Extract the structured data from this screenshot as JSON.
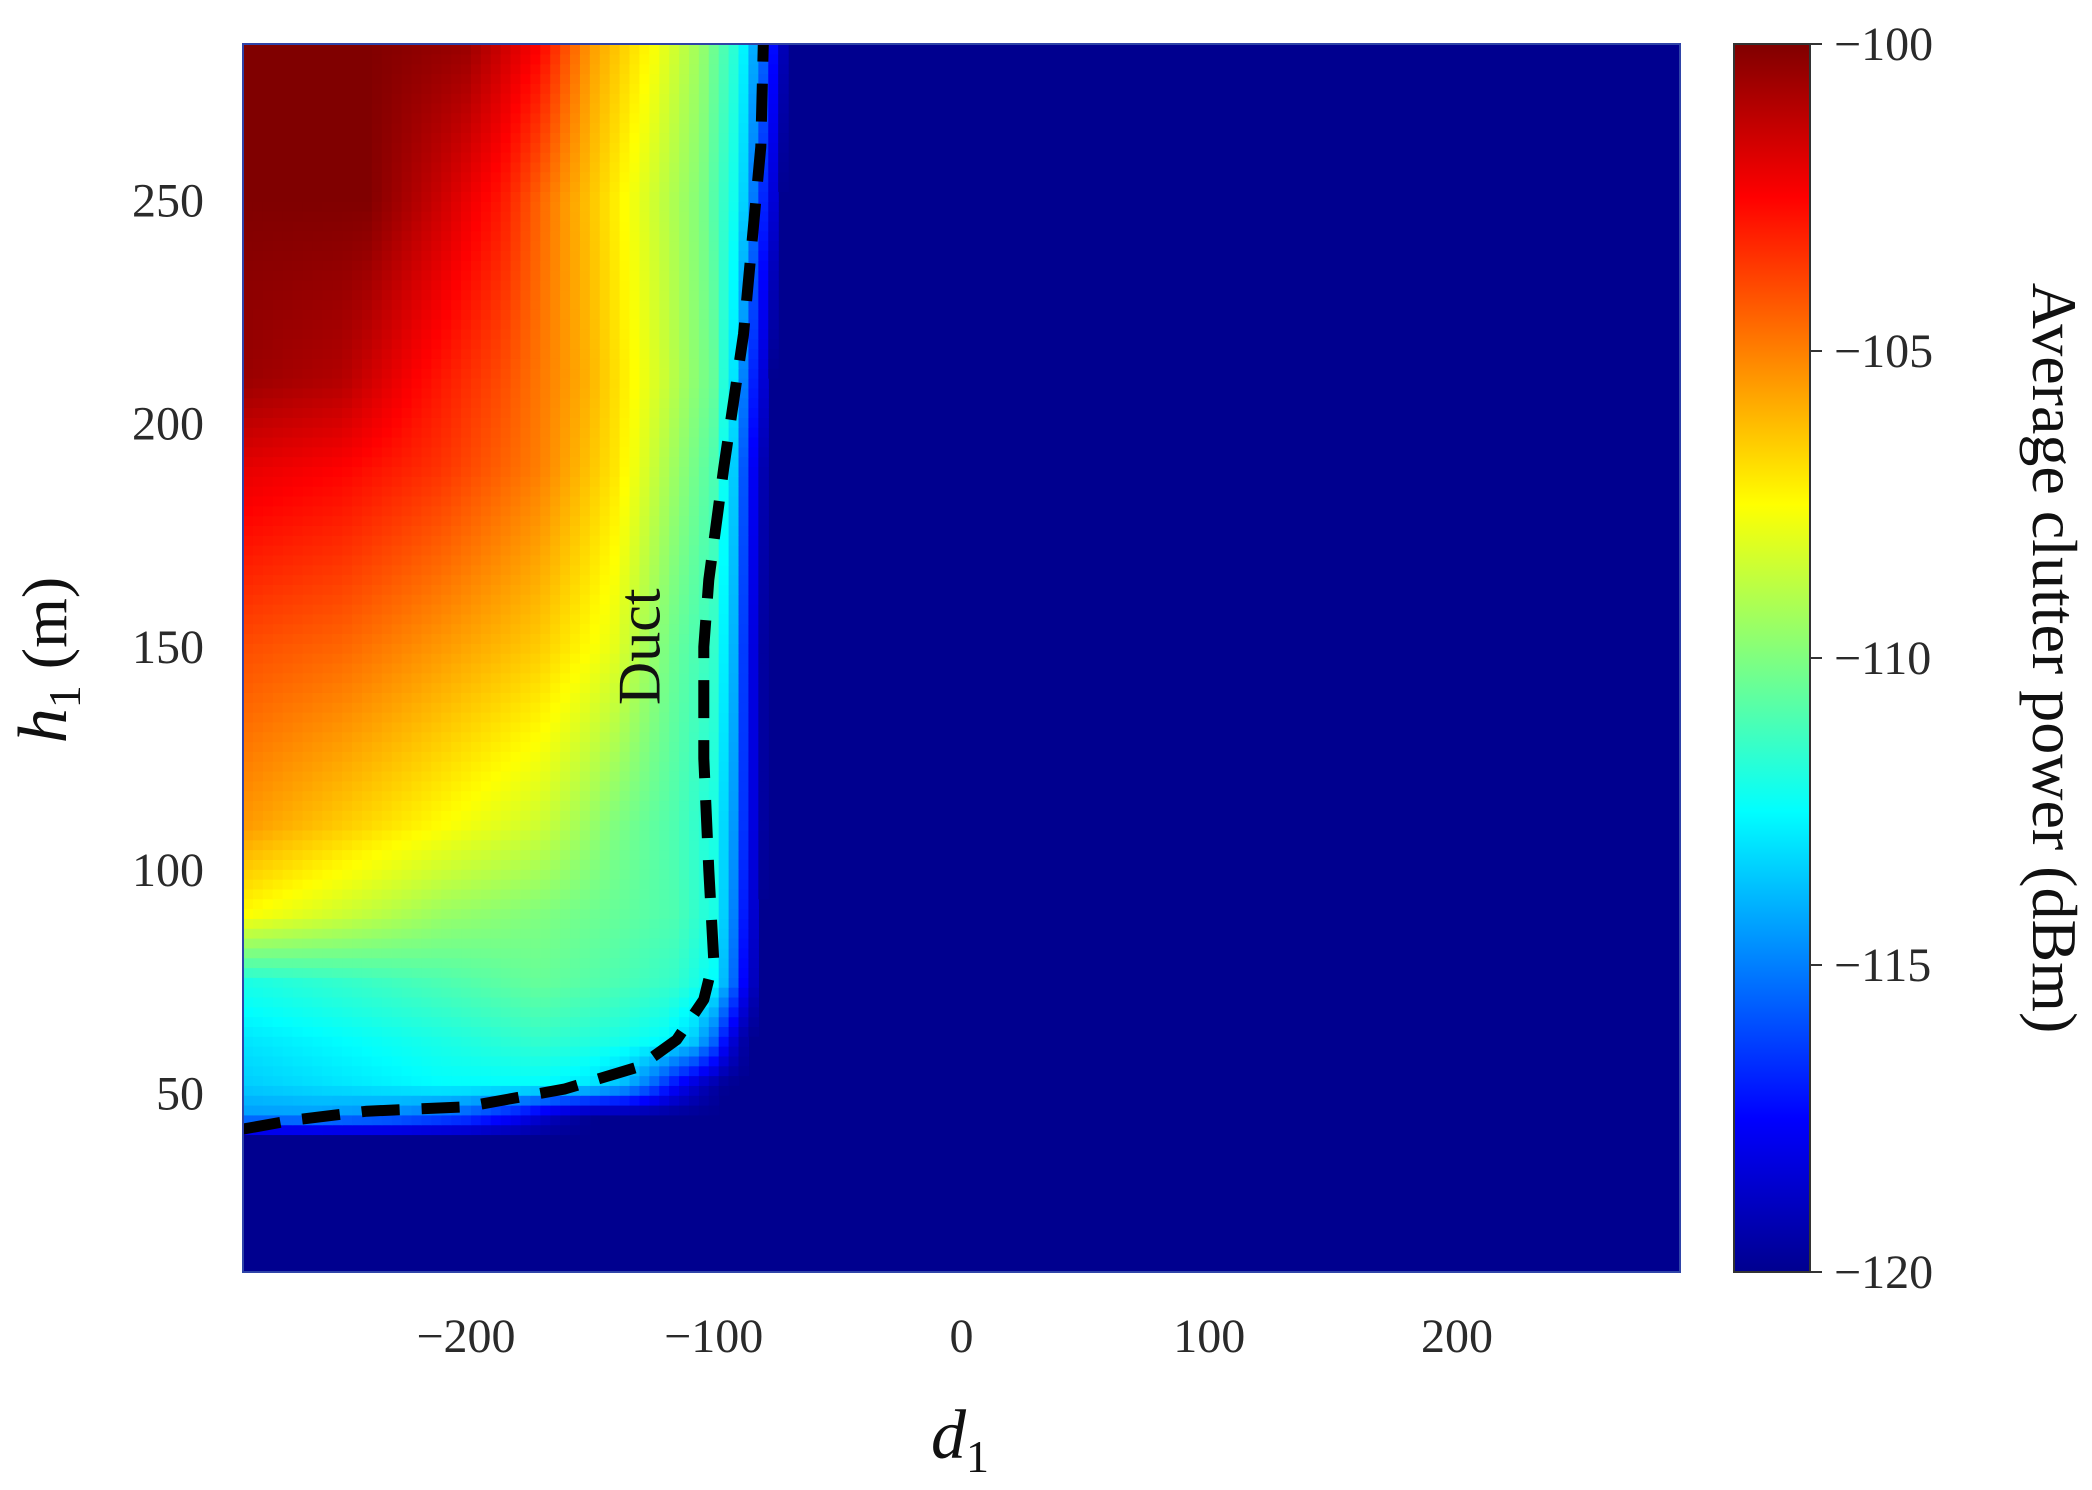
{
  "chart_data": {
    "type": "heatmap",
    "xlabel": "d1",
    "xlabel_main": "d",
    "xlabel_sub": "1",
    "ylabel": "h1 (m)",
    "ylabel_main": "h",
    "ylabel_sub": "1",
    "ylabel_unit": " (m)",
    "xlim": [
      -290,
      290
    ],
    "ylim": [
      10,
      285
    ],
    "x_ticks": [
      -200,
      -100,
      0,
      100,
      200
    ],
    "x_tick_labels": [
      "−200",
      "−100",
      "0",
      "100",
      "200"
    ],
    "y_ticks": [
      50,
      100,
      150,
      200,
      250
    ],
    "y_tick_labels": [
      "50",
      "100",
      "150",
      "200",
      "250"
    ],
    "colorbar": {
      "label": "Average clutter power (dBm)",
      "range": [
        -120,
        -100
      ],
      "ticks": [
        -100,
        -105,
        -110,
        -115,
        -120
      ],
      "tick_labels": [
        "−100",
        "−105",
        "−110",
        "−115",
        "−120"
      ],
      "colormap": "jet"
    },
    "annotation": {
      "text": "Duct",
      "x": -130,
      "y": 150
    },
    "duct_boundary": {
      "style": "dashed",
      "color": "#000000",
      "x": [
        -290,
        -270,
        -240,
        -200,
        -160,
        -130,
        -115,
        -104,
        -100,
        -102,
        -104,
        -104,
        -102,
        -96,
        -88,
        -81,
        -80
      ],
      "y": [
        42,
        44,
        46,
        47,
        51,
        56,
        62,
        71,
        80,
        100,
        125,
        150,
        165,
        190,
        220,
        262,
        285
      ]
    },
    "field_profile": {
      "description_levels": "average clutter power along rows (dBm)",
      "rows": [
        {
          "h": 285,
          "x": [
            -290,
            -240,
            -200,
            -170,
            -150,
            -125,
            -105,
            -90,
            -80,
            -70
          ],
          "v": [
            -100,
            -100,
            -100.5,
            -102.5,
            -105.5,
            -107.5,
            -109.5,
            -112,
            -115.5,
            -120
          ]
        },
        {
          "h": 250,
          "x": [
            -290,
            -240,
            -210,
            -185,
            -160,
            -130,
            -105,
            -90,
            -82,
            -72
          ],
          "v": [
            -100,
            -100,
            -101.5,
            -103,
            -105.5,
            -108,
            -110,
            -112.5,
            -116,
            -120
          ]
        },
        {
          "h": 210,
          "x": [
            -290,
            -250,
            -220,
            -185,
            -150,
            -120,
            -100,
            -92,
            -85,
            -76
          ],
          "v": [
            -100.5,
            -101,
            -102.5,
            -104,
            -106,
            -108.5,
            -110.5,
            -113,
            -116.5,
            -120
          ]
        },
        {
          "h": 190,
          "x": [
            -290,
            -250,
            -210,
            -170,
            -140,
            -115,
            -100,
            -92,
            -86,
            -78
          ],
          "v": [
            -102,
            -102.5,
            -103.5,
            -105,
            -107,
            -109.5,
            -111,
            -113.5,
            -117,
            -120
          ]
        },
        {
          "h": 150,
          "x": [
            -290,
            -250,
            -210,
            -170,
            -140,
            -115,
            -100,
            -92,
            -86,
            -79
          ],
          "v": [
            -104,
            -104.5,
            -105.5,
            -106.5,
            -108,
            -110.5,
            -111.5,
            -114,
            -117.5,
            -120
          ]
        },
        {
          "h": 110,
          "x": [
            -290,
            -250,
            -210,
            -170,
            -140,
            -115,
            -100,
            -92,
            -86,
            -79
          ],
          "v": [
            -105.5,
            -106.5,
            -107.5,
            -108.5,
            -110,
            -111,
            -112,
            -114.5,
            -117.5,
            -120
          ]
        },
        {
          "h": 90,
          "x": [
            -290,
            -250,
            -210,
            -170,
            -140,
            -115,
            -100,
            -93,
            -87,
            -80
          ],
          "v": [
            -107.5,
            -108.5,
            -109.5,
            -110,
            -110.5,
            -111,
            -112,
            -114.5,
            -117.5,
            -120
          ]
        },
        {
          "h": 75,
          "x": [
            -290,
            -250,
            -210,
            -170,
            -140,
            -115,
            -100,
            -94,
            -88,
            -81
          ],
          "v": [
            -112,
            -111.5,
            -111,
            -110.5,
            -111,
            -111.5,
            -112.5,
            -114.5,
            -117.5,
            -120
          ]
        },
        {
          "h": 62,
          "x": [
            -290,
            -250,
            -210,
            -170,
            -140,
            -120,
            -108,
            -100,
            -94,
            -86
          ],
          "v": [
            -113,
            -112.5,
            -112,
            -111.5,
            -112,
            -112.5,
            -113.5,
            -115.5,
            -118,
            -120
          ]
        },
        {
          "h": 52,
          "x": [
            -290,
            -250,
            -210,
            -170,
            -150,
            -135,
            -125,
            -115,
            -105,
            -95
          ],
          "v": [
            -113.5,
            -113,
            -112.5,
            -112.5,
            -113,
            -114,
            -115.5,
            -117.5,
            -119,
            -120
          ]
        },
        {
          "h": 45,
          "x": [
            -290,
            -260,
            -230,
            -200,
            -180,
            -165,
            -150,
            -135,
            -120,
            -105
          ],
          "v": [
            -114.5,
            -114.5,
            -115,
            -116,
            -117.5,
            -119,
            -120,
            -120,
            -120,
            -120
          ]
        },
        {
          "h": 40,
          "x": [
            -290,
            -260,
            -230,
            -200,
            -180,
            -165,
            -150,
            -135,
            -120,
            -105
          ],
          "v": [
            -120,
            -120,
            -120,
            -120,
            -120,
            -120,
            -120,
            -120,
            -120,
            -120
          ]
        },
        {
          "h": 10,
          "x": [
            -290,
            -260,
            -230,
            -200,
            -180,
            -165,
            -150,
            -135,
            -120,
            -105
          ],
          "v": [
            -120,
            -120,
            -120,
            -120,
            -120,
            -120,
            -120,
            -120,
            -120,
            -120
          ]
        }
      ],
      "background_value": -120
    }
  }
}
